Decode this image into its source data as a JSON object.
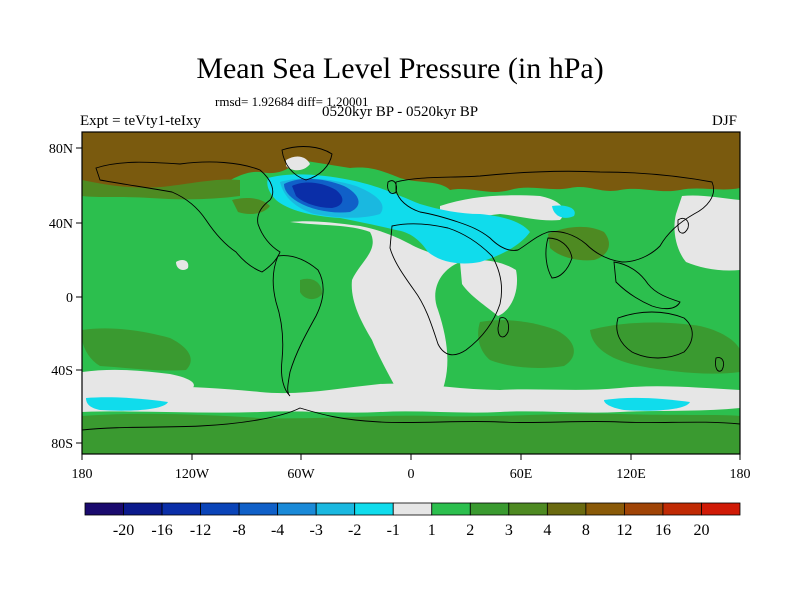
{
  "title": "Mean Sea Level Pressure (in hPa)",
  "stats": "rmsd= 1.92684 diff= 1.20001",
  "experiment": "Expt = teVty1-teIxy",
  "period": "0520kyr BP - 0520kyr BP",
  "season": "DJF",
  "lat_labels": [
    "80N",
    "40N",
    "0",
    "40S",
    "80S"
  ],
  "lon_labels": [
    "180",
    "120W",
    "60W",
    "0",
    "60E",
    "120E",
    "180"
  ],
  "colorbar": {
    "labels": [
      "-20",
      "-16",
      "-12",
      "-8",
      "-4",
      "-3",
      "-2",
      "-1",
      "1",
      "2",
      "3",
      "4",
      "8",
      "12",
      "16",
      "20"
    ],
    "colors": [
      "#1a0a6e",
      "#0b1a8c",
      "#0a2ea8",
      "#0a44b8",
      "#1060c8",
      "#1a8ad8",
      "#1ab8e0",
      "#10dcec",
      "#e6e6e6",
      "#2cbf4e",
      "#3a9a30",
      "#4e8a22",
      "#6a6a10",
      "#8a5a08",
      "#a04406",
      "#c02a04",
      "#d01a06"
    ]
  },
  "palette": {
    "land_brown": "#7a5a0e",
    "green": "#2cbf4e",
    "dark_green": "#3a9a30",
    "olive": "#4e8a22",
    "neutral": "#e6e6e6",
    "cyan": "#10dcec",
    "light_blue": "#1ab8e0",
    "blue": "#1060c8",
    "dark_blue": "#0a2ea8"
  }
}
